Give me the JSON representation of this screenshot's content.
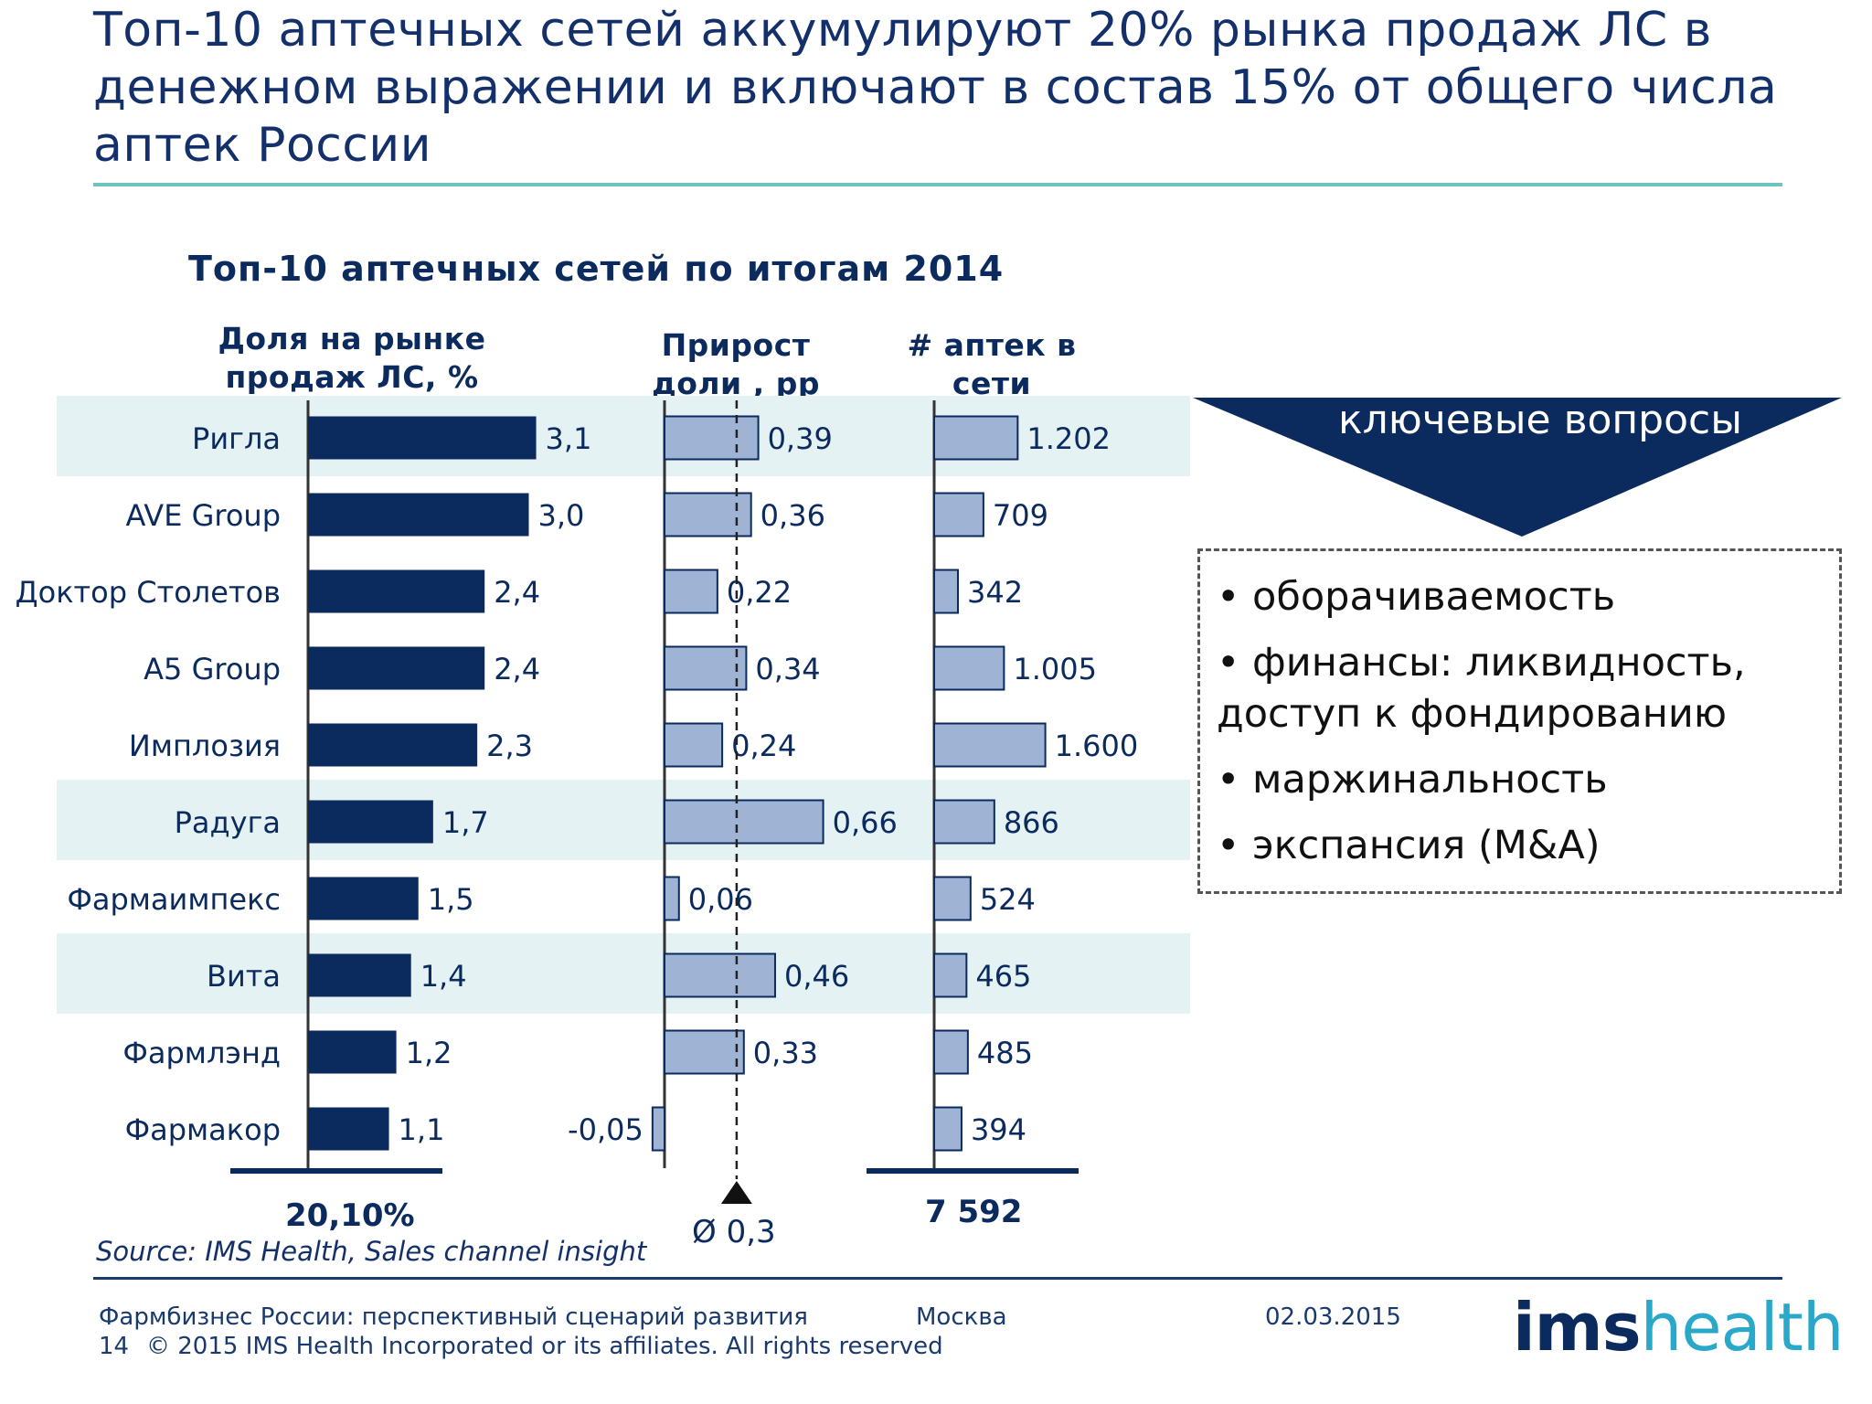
{
  "title": "Топ-10 аптечных сетей аккумулируют 20% рынка продаж ЛС в денежном выражении и включают в состав 15% от общего числа аптек России",
  "chart_title": "Топ-10 аптечных сетей по итогам 2014",
  "columns": {
    "share": "Доля на рынке продаж ЛС, %",
    "growth": "Прирост доли , pp",
    "count": "# аптек в сети"
  },
  "chart_data": {
    "type": "bar",
    "categories": [
      "Ригла",
      "AVE Group",
      "Доктор Столетов",
      "А5 Group",
      "Имплозия",
      "Радуга",
      "Фармаимпекс",
      "Вита",
      "Фармлэнд",
      "Фармакор"
    ],
    "series": [
      {
        "name": "Доля на рынке продаж ЛС, %",
        "values": [
          3.1,
          3.0,
          2.4,
          2.4,
          2.3,
          1.7,
          1.5,
          1.4,
          1.2,
          1.1
        ],
        "labels": [
          "3,1",
          "3,0",
          "2,4",
          "2,4",
          "2,3",
          "1,7",
          "1,5",
          "1,4",
          "1,2",
          "1,1"
        ]
      },
      {
        "name": "Прирост доли , pp",
        "values": [
          0.39,
          0.36,
          0.22,
          0.34,
          0.24,
          0.66,
          0.06,
          0.46,
          0.33,
          -0.05
        ],
        "labels": [
          "0,39",
          "0,36",
          "0,22",
          "0,34",
          "0,24",
          "0,66",
          "0,06",
          "0,46",
          "0,33",
          "-0,05"
        ],
        "reference_line": 0.3
      },
      {
        "name": "# аптек в сети",
        "values": [
          1202,
          709,
          342,
          1005,
          1600,
          866,
          524,
          465,
          485,
          394
        ],
        "labels": [
          "1.202",
          "709",
          "342",
          "1.005",
          "1.600",
          "866",
          "524",
          "465",
          "485",
          "394"
        ]
      }
    ],
    "highlighted_rows": [
      "Ригла",
      "Радуга",
      "Вита"
    ],
    "summary": {
      "share_total": "20,10%",
      "growth_avg": "Ø 0,3",
      "count_total": "7 592"
    }
  },
  "key_questions": {
    "label": "ключевые вопросы",
    "items": [
      "• оборачиваемость",
      "• финансы: ликвидность, доступ к фондированию",
      "• маржинальность",
      "• экспансия (M&A)"
    ]
  },
  "source": "Source: IMS Health, Sales channel insight",
  "footer": {
    "deck_title": "Фармбизнес России: перспективный сценарий развития",
    "city": "Москва",
    "date": "02.03.2015",
    "page": "14",
    "copyright": "© 2015 IMS Health Incorporated or its affiliates. All rights reserved",
    "logo_ims": "ims",
    "logo_health": "health"
  },
  "colors": {
    "share_bar": "#0b2a5e",
    "growth_bar": "#9fb3d4",
    "row_highlight": "#e4f2f4",
    "accent": "#6cc3c0",
    "triangle": "#0b2a5e"
  }
}
